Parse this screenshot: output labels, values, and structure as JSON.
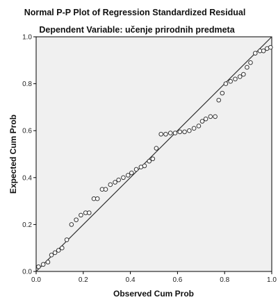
{
  "chart_data": {
    "type": "scatter",
    "title": "Normal P-P Plot of Regression Standardized Residual",
    "subtitle": "Dependent Variable: učenje prirodnih predmeta",
    "xlabel": "Observed Cum Prob",
    "ylabel": "Expected Cum Prob",
    "xlim": [
      0,
      1
    ],
    "ylim": [
      0,
      1
    ],
    "xticks": [
      "0.0",
      "0.2",
      "0.4",
      "0.6",
      "0.8",
      "1.0"
    ],
    "yticks": [
      "0.0",
      "0.2",
      "0.4",
      "0.6",
      "0.8",
      "1.0"
    ],
    "reference_line": [
      [
        0,
        0
      ],
      [
        1,
        1
      ]
    ],
    "grid": false,
    "colors": {
      "plot_bg": "#f0f0f0",
      "frame": "#000000",
      "marker_stroke": "#333333",
      "marker_fill": "#ffffff",
      "line": "#333333"
    },
    "points": [
      [
        0.01,
        0.02
      ],
      [
        0.03,
        0.03
      ],
      [
        0.05,
        0.04
      ],
      [
        0.065,
        0.07
      ],
      [
        0.08,
        0.08
      ],
      [
        0.095,
        0.09
      ],
      [
        0.11,
        0.1
      ],
      [
        0.13,
        0.135
      ],
      [
        0.15,
        0.2
      ],
      [
        0.17,
        0.22
      ],
      [
        0.19,
        0.24
      ],
      [
        0.21,
        0.25
      ],
      [
        0.225,
        0.25
      ],
      [
        0.245,
        0.31
      ],
      [
        0.26,
        0.31
      ],
      [
        0.28,
        0.35
      ],
      [
        0.295,
        0.35
      ],
      [
        0.315,
        0.37
      ],
      [
        0.335,
        0.38
      ],
      [
        0.35,
        0.39
      ],
      [
        0.37,
        0.4
      ],
      [
        0.39,
        0.41
      ],
      [
        0.405,
        0.42
      ],
      [
        0.425,
        0.435
      ],
      [
        0.445,
        0.445
      ],
      [
        0.46,
        0.45
      ],
      [
        0.48,
        0.47
      ],
      [
        0.495,
        0.48
      ],
      [
        0.51,
        0.525
      ],
      [
        0.53,
        0.585
      ],
      [
        0.55,
        0.585
      ],
      [
        0.57,
        0.59
      ],
      [
        0.59,
        0.59
      ],
      [
        0.61,
        0.595
      ],
      [
        0.63,
        0.595
      ],
      [
        0.65,
        0.6
      ],
      [
        0.67,
        0.61
      ],
      [
        0.69,
        0.62
      ],
      [
        0.705,
        0.64
      ],
      [
        0.72,
        0.65
      ],
      [
        0.74,
        0.66
      ],
      [
        0.76,
        0.66
      ],
      [
        0.775,
        0.73
      ],
      [
        0.79,
        0.76
      ],
      [
        0.805,
        0.8
      ],
      [
        0.825,
        0.81
      ],
      [
        0.845,
        0.82
      ],
      [
        0.865,
        0.83
      ],
      [
        0.88,
        0.84
      ],
      [
        0.895,
        0.87
      ],
      [
        0.91,
        0.89
      ],
      [
        0.93,
        0.93
      ],
      [
        0.95,
        0.94
      ],
      [
        0.965,
        0.94
      ],
      [
        0.98,
        0.95
      ],
      [
        0.995,
        0.955
      ]
    ]
  }
}
